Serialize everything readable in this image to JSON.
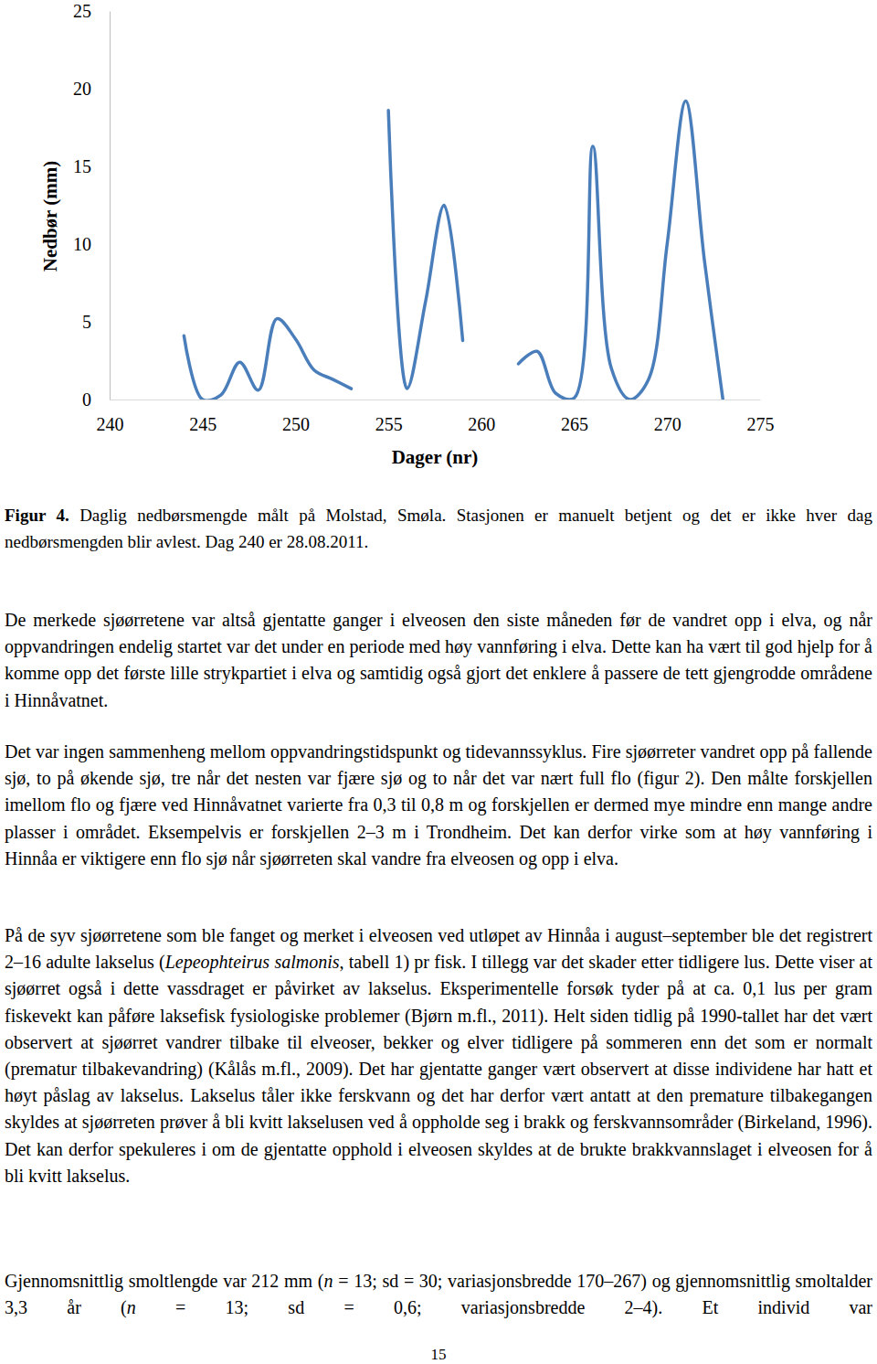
{
  "chart_data": {
    "type": "line",
    "xlabel": "Dager (nr)",
    "ylabel": "Nedbør (mm)",
    "x": [
      244,
      245,
      246,
      247,
      248,
      249,
      250,
      251,
      252,
      253,
      254,
      255,
      256,
      257,
      258,
      259,
      260,
      261,
      262,
      263,
      264,
      265,
      266,
      267,
      268,
      269,
      270,
      271,
      272,
      273
    ],
    "series": [
      {
        "color": "#4a7ebb",
        "values": [
          4.1,
          0,
          0.3,
          2.4,
          0.6,
          5.2,
          3.9,
          1.9,
          1.3,
          0.7,
          null,
          18.6,
          0.7,
          6.3,
          12.5,
          3.8,
          null,
          null,
          2.3,
          3.1,
          0.4,
          0.1,
          16.3,
          2,
          0,
          1.3,
          10,
          19.2,
          9,
          0
        ]
      }
    ],
    "xlim": [
      240,
      275
    ],
    "xticks": [
      240,
      245,
      250,
      255,
      260,
      265,
      270,
      275
    ],
    "ylim": [
      0,
      25
    ],
    "yticks": [
      0,
      5,
      10,
      15,
      20,
      25
    ],
    "grid": false
  },
  "document": {
    "caption": [
      {
        "t": "Figur 4.",
        "b": true
      },
      {
        "t": " Daglig nedbørsmengde målt på Molstad, Smøla. Stasjonen er manuelt betjent og det er ikke hver dag nedbørsmengden blir avlest. Dag 240 er 28.08.2011."
      }
    ],
    "paragraphs": [
      [
        {
          "t": "De merkede sjøørretene var altså gjentatte ganger i elveosen den siste måneden før de vandret opp i elva, og når oppvandringen endelig startet var det under en periode med høy vannføring i elva. Dette kan ha vært til god hjelp for å komme opp det første lille strykpartiet i elva og samtidig også gjort det enklere å passere de tett gjengrodde områdene i Hinnåvatnet."
        }
      ],
      [
        {
          "t": "Det var ingen sammenheng mellom oppvandringstidspunkt og tidevannssyklus. Fire sjøørreter vandret opp på fallende sjø, to på økende sjø, tre når det nesten var fjære sjø og to når det var nært full flo (figur 2). Den målte forskjellen imellom flo og fjære ved Hinnåvatnet varierte fra 0,3 til 0,8 m og forskjellen er dermed mye mindre enn mange andre plasser i området. Eksempelvis er forskjellen 2–3 m i Trondheim. Det kan derfor virke som at høy vannføring i Hinnåa er viktigere enn flo sjø når sjøørreten skal vandre fra elveosen og opp i elva."
        }
      ],
      [
        {
          "t": "På de syv sjøørretene som ble fanget og merket i elveosen ved utløpet av Hinnåa i august–september ble det registrert 2–16 adulte lakselus ("
        },
        {
          "t": "Lepeophteirus salmonis",
          "i": true
        },
        {
          "t": ", tabell 1) pr fisk. I tillegg var det skader etter tidligere lus. Dette viser at sjøørret også i dette vassdraget er påvirket av lakselus. Eksperimentelle forsøk tyder på at ca. 0,1 lus per gram fiskevekt kan påføre laksefisk fysiologiske problemer (Bjørn m.fl., 2011). Helt siden tidlig på 1990-tallet har det vært observert at sjøørret vandrer tilbake til elveoser, bekker og elver tidligere på sommeren enn det som er normalt (prematur tilbakevandring) (Kålås m.fl., 2009). Det har gjentatte ganger vært observert at disse individene har hatt et høyt påslag av lakselus. Lakselus tåler ikke ferskvann og det har derfor vært antatt at den premature tilbakegangen skyldes at sjøørreten prøver å bli kvitt lakselusen ved å oppholde seg i brakk og ferskvannsområder (Birkeland, 1996). Det kan derfor spekuleres i om de gjentatte opphold i elveosen skyldes at de brukte brakkvannslaget i elveosen for å bli kvitt lakselus."
        }
      ],
      [
        {
          "t": "Gjennomsnittlig smoltlengde var 212 mm ("
        },
        {
          "t": "n",
          "i": true
        },
        {
          "t": " = 13; sd = 30; variasjonsbredde 170–267) og gjennomsnittlig smoltalder 3,3 år ("
        },
        {
          "t": "n",
          "i": true
        },
        {
          "t": " = 13; sd = 0,6; variasjonsbredde 2–4). Et individ var"
        }
      ]
    ],
    "page_number": "15"
  }
}
